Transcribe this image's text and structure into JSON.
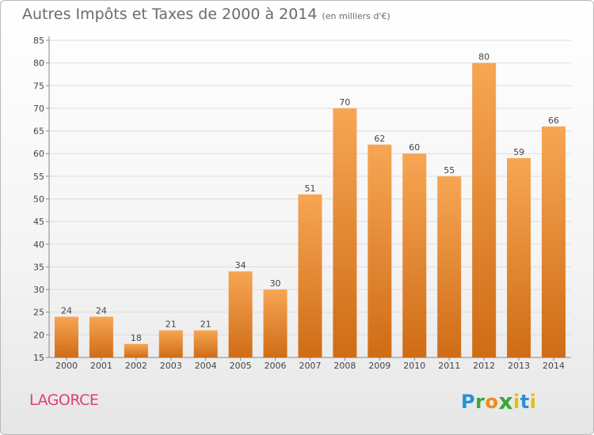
{
  "header": {
    "title": "Autres Impôts et Taxes de 2000 à 2014",
    "unit": "(en milliers d'€)"
  },
  "footer": {
    "commune": "LAGORCE",
    "logo_text": "Proxiti",
    "logo_letters": [
      "P",
      "r",
      "o",
      "x",
      "i",
      "t",
      "i"
    ],
    "logo_colors": [
      "#2a8fd6",
      "#3aa63a",
      "#f08a14",
      "#3aa63a",
      "#e2c012",
      "#2a8fd6",
      "#e2c012"
    ]
  },
  "colors": {
    "bar_light": "#f7a654",
    "bar_dark": "#cf6c16",
    "grid": "#dddddd",
    "commune": "#e0406f"
  },
  "chart_data": {
    "type": "bar",
    "categories": [
      "2000",
      "2001",
      "2002",
      "2003",
      "2004",
      "2005",
      "2006",
      "2007",
      "2008",
      "2009",
      "2010",
      "2011",
      "2012",
      "2013",
      "2014"
    ],
    "values": [
      24,
      24,
      18,
      21,
      21,
      34,
      30,
      51,
      70,
      62,
      60,
      55,
      80,
      59,
      66
    ],
    "ylim": [
      15,
      85
    ],
    "yticks": [
      15,
      20,
      25,
      30,
      35,
      40,
      45,
      50,
      55,
      60,
      65,
      70,
      75,
      80,
      85
    ],
    "grid": true,
    "data_labels": true
  }
}
